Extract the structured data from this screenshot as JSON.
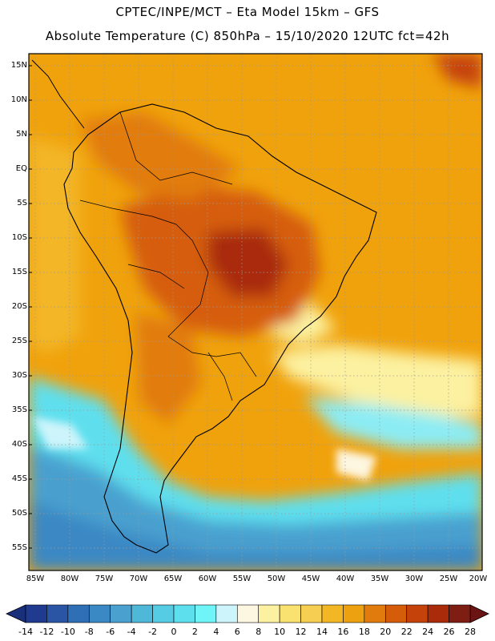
{
  "title": {
    "line1": "CPTEC/INPE/MCT –   Eta Model 15km – GFS",
    "line2": "Absolute Temperature (C) 850hPa – 15/10/2020 12UTC fct=42h"
  },
  "lat_labels": [
    "15N",
    "10N",
    "5N",
    "EQ",
    "5S",
    "10S",
    "15S",
    "20S",
    "25S",
    "30S",
    "35S",
    "40S",
    "45S",
    "50S",
    "55S"
  ],
  "lon_labels": [
    "85W",
    "80W",
    "75W",
    "70W",
    "65W",
    "60W",
    "55W",
    "50W",
    "45W",
    "40W",
    "35W",
    "30W",
    "25W",
    "20W"
  ],
  "colorbar": {
    "labels": [
      "-14",
      "-12",
      "-10",
      "-8",
      "-6",
      "-4",
      "-2",
      "0",
      "2",
      "4",
      "6",
      "8",
      "10",
      "12",
      "14",
      "16",
      "18",
      "20",
      "22",
      "24",
      "26",
      "28"
    ],
    "colors": [
      "#1f3a8f",
      "#2a55a5",
      "#2f6fb6",
      "#3a88c4",
      "#4aa0cf",
      "#4fb8d9",
      "#55cce4",
      "#5edfee",
      "#6ff4f8",
      "#cdf4fb",
      "#fdf6e0",
      "#fcf1a0",
      "#f9e26f",
      "#f6cf52",
      "#f3b625",
      "#eda110",
      "#e17b0d",
      "#d55d09",
      "#c5420a",
      "#a92b0a",
      "#7e1d12"
    ]
  }
}
